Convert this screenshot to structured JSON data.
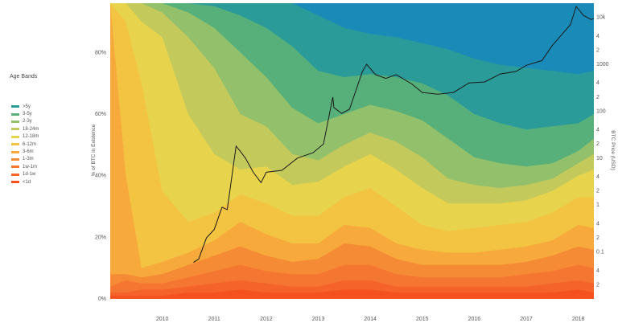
{
  "chart_data": {
    "type": "area",
    "legend_title": "Age Bands",
    "legend_position": "left",
    "ylabel_left": "% of BTC in Existence",
    "ylabel_right": "BTC Price (USD)",
    "y_left_ticks": [
      "0%",
      "20%",
      "40%",
      "60%",
      "80%"
    ],
    "y_left_range": [
      0,
      96
    ],
    "y_right_scale": "log",
    "y_right_range": [
      0.01,
      20000
    ],
    "y_right_ticks": [
      "0.1",
      "1",
      "10",
      "100",
      "1000",
      "10k"
    ],
    "y_right_minor": [
      "2",
      "4"
    ],
    "x_ticks": [
      "2010",
      "2011",
      "2012",
      "2013",
      "2014",
      "2015",
      "2016",
      "2017",
      "2018"
    ],
    "x_range": [
      2009.0,
      2018.3
    ],
    "grid": false,
    "x": [
      2009.0,
      2009.3,
      2009.6,
      2010.0,
      2010.5,
      2011.0,
      2011.5,
      2012.0,
      2012.5,
      2013.0,
      2013.5,
      2014.0,
      2014.5,
      2015.0,
      2015.5,
      2016.0,
      2016.5,
      2017.0,
      2017.5,
      2018.0,
      2018.3
    ],
    "series": [
      {
        "name": "<1d",
        "color": "#f4511e",
        "values": [
          1,
          1,
          1,
          1,
          2,
          2,
          3,
          2,
          2,
          2,
          3,
          3,
          2,
          2,
          2,
          2,
          2,
          2,
          2,
          3,
          2
        ]
      },
      {
        "name": "1d-1w",
        "color": "#f5622a",
        "values": [
          2,
          2,
          3,
          3,
          4,
          5,
          6,
          5,
          4,
          4,
          6,
          6,
          4,
          4,
          4,
          4,
          4,
          4,
          5,
          6,
          5
        ]
      },
      {
        "name": "1w-1m",
        "color": "#f57631",
        "values": [
          4,
          6,
          5,
          5,
          7,
          9,
          11,
          9,
          8,
          8,
          11,
          11,
          8,
          7,
          7,
          7,
          7,
          8,
          9,
          11,
          10
        ]
      },
      {
        "name": "1-3m",
        "color": "#f68b35",
        "values": [
          8,
          8,
          7,
          8,
          11,
          14,
          17,
          14,
          12,
          13,
          18,
          17,
          13,
          11,
          11,
          11,
          11,
          12,
          14,
          17,
          16
        ]
      },
      {
        "name": "3-6m",
        "color": "#f7a93c",
        "values": [
          96,
          40,
          10,
          12,
          15,
          19,
          25,
          21,
          18,
          18,
          24,
          23,
          18,
          16,
          15,
          15,
          16,
          17,
          19,
          24,
          23
        ]
      },
      {
        "name": "6-12m",
        "color": "#f3c442",
        "values": [
          96,
          90,
          70,
          35,
          25,
          28,
          34,
          31,
          27,
          27,
          33,
          36,
          30,
          24,
          22,
          23,
          24,
          25,
          28,
          33,
          33
        ]
      },
      {
        "name": "12-18m",
        "color": "#e7d44c",
        "values": [
          96,
          96,
          90,
          85,
          60,
          47,
          42,
          43,
          37,
          38,
          43,
          47,
          42,
          36,
          31,
          31,
          31,
          32,
          35,
          40,
          42
        ]
      },
      {
        "name": "18-24m",
        "color": "#c4c95c",
        "values": [
          96,
          96,
          96,
          93,
          85,
          75,
          60,
          56,
          47,
          45,
          50,
          54,
          51,
          46,
          39,
          37,
          36,
          37,
          39,
          44,
          47
        ]
      },
      {
        "name": "2-3y",
        "color": "#93c06a",
        "values": [
          96,
          96,
          96,
          96,
          93,
          88,
          80,
          72,
          62,
          57,
          60,
          63,
          61,
          58,
          52,
          46,
          44,
          43,
          44,
          48,
          52
        ]
      },
      {
        "name": "3-5y",
        "color": "#57b07a",
        "values": [
          96,
          96,
          96,
          96,
          96,
          95,
          92,
          88,
          82,
          74,
          72,
          73,
          72,
          70,
          66,
          60,
          57,
          55,
          56,
          57,
          60
        ]
      },
      {
        "name": ">5y",
        "color": "#2a9b98",
        "values": [
          96,
          96,
          96,
          96,
          96,
          96,
          96,
          96,
          96,
          92,
          88,
          86,
          85,
          83,
          81,
          78,
          76,
          75,
          74,
          73,
          74
        ]
      },
      {
        "name": "",
        "color": "#1a8bb8",
        "values": [
          96,
          96,
          96,
          96,
          96,
          96,
          96,
          96,
          96,
          96,
          96,
          96,
          96,
          96,
          96,
          96,
          96,
          96,
          96,
          96,
          96
        ]
      }
    ],
    "price": {
      "name": "BTC Price (USD)",
      "color": "#1a1a1a",
      "x": [
        2010.6,
        2010.7,
        2010.85,
        2011.0,
        2011.15,
        2011.25,
        2011.42,
        2011.5,
        2011.6,
        2011.75,
        2011.9,
        2012.0,
        2012.3,
        2012.6,
        2012.9,
        2013.1,
        2013.28,
        2013.3,
        2013.45,
        2013.6,
        2013.85,
        2013.93,
        2014.1,
        2014.3,
        2014.5,
        2014.8,
        2015.0,
        2015.3,
        2015.6,
        2015.9,
        2016.2,
        2016.5,
        2016.8,
        2017.0,
        2017.3,
        2017.5,
        2017.7,
        2017.85,
        2017.96,
        2018.1,
        2018.25,
        2018.3
      ],
      "values": [
        0.06,
        0.07,
        0.2,
        0.3,
        0.9,
        0.8,
        18,
        14,
        10,
        5,
        3,
        5,
        5.5,
        10,
        13,
        20,
        200,
        120,
        90,
        110,
        700,
        1000,
        600,
        500,
        600,
        380,
        250,
        230,
        250,
        400,
        420,
        620,
        700,
        950,
        1200,
        2500,
        4500,
        7000,
        17000,
        11000,
        9000,
        9500
      ]
    }
  }
}
